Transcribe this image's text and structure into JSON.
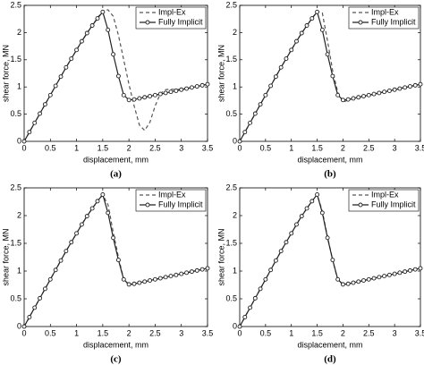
{
  "chart_data": [
    {
      "type": "line",
      "caption": "(a)",
      "xlabel": "displacement, mm",
      "ylabel": "shear force, MN",
      "xlim": [
        0,
        3.5
      ],
      "ylim": [
        0,
        2.5
      ],
      "xticks": [
        0,
        0.5,
        1,
        1.5,
        2,
        2.5,
        3,
        3.5
      ],
      "yticks": [
        0,
        0.5,
        1,
        1.5,
        2,
        2.5
      ],
      "legend": "upper right",
      "x": [
        0,
        0.1,
        0.2,
        0.3,
        0.4,
        0.5,
        0.6,
        0.7,
        0.8,
        0.9,
        1,
        1.1,
        1.2,
        1.3,
        1.4,
        1.5,
        1.6,
        1.7,
        1.8,
        1.9,
        2,
        2.1,
        2.2,
        2.3,
        2.4,
        2.5,
        2.6,
        2.7,
        2.8,
        2.9,
        3,
        3.1,
        3.2,
        3.3,
        3.4,
        3.5
      ],
      "series": [
        {
          "name": "Impl-Ex",
          "color": "#555555",
          "linestyle": "dashed",
          "values": [
            0,
            0.17,
            0.34,
            0.51,
            0.68,
            0.85,
            1.02,
            1.19,
            1.36,
            1.52,
            1.68,
            1.84,
            1.99,
            2.13,
            2.27,
            2.4,
            2.42,
            2.3,
            1.95,
            1.5,
            1.05,
            0.65,
            0.3,
            0.2,
            0.35,
            0.65,
            0.88,
            0.95,
            0.96,
            0.95,
            0.96,
            0.97,
            0.99,
            1.01,
            1.03,
            1.05
          ]
        },
        {
          "name": "Fully Implicit",
          "color": "#222222",
          "linestyle": "solid",
          "marker": "o",
          "values": [
            0,
            0.17,
            0.34,
            0.51,
            0.68,
            0.85,
            1.02,
            1.19,
            1.36,
            1.52,
            1.68,
            1.84,
            1.99,
            2.13,
            2.26,
            2.38,
            2.05,
            1.6,
            1.2,
            0.85,
            0.76,
            0.77,
            0.79,
            0.81,
            0.83,
            0.85,
            0.87,
            0.89,
            0.91,
            0.93,
            0.95,
            0.97,
            0.99,
            1.01,
            1.03,
            1.05
          ]
        }
      ]
    },
    {
      "type": "line",
      "caption": "(b)",
      "xlabel": "displacement, mm",
      "ylabel": "shear force, MN",
      "xlim": [
        0,
        3.5
      ],
      "ylim": [
        0,
        2.5
      ],
      "xticks": [
        0,
        0.5,
        1,
        1.5,
        2,
        2.5,
        3,
        3.5
      ],
      "yticks": [
        0,
        0.5,
        1,
        1.5,
        2,
        2.5
      ],
      "legend": "upper right",
      "x": [
        0,
        0.1,
        0.2,
        0.3,
        0.4,
        0.5,
        0.6,
        0.7,
        0.8,
        0.9,
        1,
        1.1,
        1.2,
        1.3,
        1.4,
        1.5,
        1.6,
        1.7,
        1.8,
        1.9,
        2,
        2.1,
        2.2,
        2.3,
        2.4,
        2.5,
        2.6,
        2.7,
        2.8,
        2.9,
        3,
        3.1,
        3.2,
        3.3,
        3.4,
        3.5
      ],
      "series": [
        {
          "name": "Impl-Ex",
          "color": "#555555",
          "linestyle": "dashed",
          "values": [
            0,
            0.17,
            0.34,
            0.51,
            0.68,
            0.85,
            1.02,
            1.19,
            1.36,
            1.52,
            1.68,
            1.84,
            1.99,
            2.13,
            2.26,
            2.39,
            2.36,
            1.85,
            1.3,
            0.9,
            0.72,
            0.76,
            0.79,
            0.81,
            0.83,
            0.85,
            0.87,
            0.89,
            0.91,
            0.93,
            0.95,
            0.97,
            0.99,
            1.01,
            1.03,
            1.05
          ]
        },
        {
          "name": "Fully Implicit",
          "color": "#222222",
          "linestyle": "solid",
          "marker": "o",
          "values": [
            0,
            0.17,
            0.34,
            0.51,
            0.68,
            0.85,
            1.02,
            1.19,
            1.36,
            1.52,
            1.68,
            1.84,
            1.99,
            2.13,
            2.26,
            2.38,
            2.05,
            1.6,
            1.2,
            0.85,
            0.76,
            0.77,
            0.79,
            0.81,
            0.83,
            0.85,
            0.87,
            0.89,
            0.91,
            0.93,
            0.95,
            0.97,
            0.99,
            1.01,
            1.03,
            1.05
          ]
        }
      ]
    },
    {
      "type": "line",
      "caption": "(c)",
      "xlabel": "displacement, mm",
      "ylabel": "shear force, MN",
      "xlim": [
        0,
        3.5
      ],
      "ylim": [
        0,
        2.5
      ],
      "xticks": [
        0,
        0.5,
        1,
        1.5,
        2,
        2.5,
        3,
        3.5
      ],
      "yticks": [
        0,
        0.5,
        1,
        1.5,
        2,
        2.5
      ],
      "legend": "upper right",
      "x": [
        0,
        0.1,
        0.2,
        0.3,
        0.4,
        0.5,
        0.6,
        0.7,
        0.8,
        0.9,
        1,
        1.1,
        1.2,
        1.3,
        1.4,
        1.5,
        1.6,
        1.7,
        1.8,
        1.9,
        2,
        2.1,
        2.2,
        2.3,
        2.4,
        2.5,
        2.6,
        2.7,
        2.8,
        2.9,
        3,
        3.1,
        3.2,
        3.3,
        3.4,
        3.5
      ],
      "series": [
        {
          "name": "Impl-Ex",
          "color": "#555555",
          "linestyle": "dashed",
          "values": [
            0,
            0.17,
            0.34,
            0.51,
            0.68,
            0.85,
            1.02,
            1.19,
            1.36,
            1.52,
            1.68,
            1.84,
            1.99,
            2.13,
            2.26,
            2.37,
            2.2,
            1.7,
            1.25,
            0.85,
            0.75,
            0.77,
            0.79,
            0.81,
            0.83,
            0.85,
            0.87,
            0.89,
            0.91,
            0.93,
            0.95,
            0.97,
            0.99,
            1.01,
            1.03,
            1.05
          ]
        },
        {
          "name": "Fully Implicit",
          "color": "#222222",
          "linestyle": "solid",
          "marker": "o",
          "values": [
            0,
            0.17,
            0.34,
            0.51,
            0.68,
            0.85,
            1.02,
            1.19,
            1.36,
            1.52,
            1.68,
            1.84,
            1.99,
            2.13,
            2.26,
            2.38,
            2.05,
            1.6,
            1.2,
            0.85,
            0.76,
            0.77,
            0.79,
            0.81,
            0.83,
            0.85,
            0.87,
            0.89,
            0.91,
            0.93,
            0.95,
            0.97,
            0.99,
            1.01,
            1.03,
            1.05
          ]
        }
      ]
    },
    {
      "type": "line",
      "caption": "(d)",
      "xlabel": "displacement, mm",
      "ylabel": "shear force, MN",
      "xlim": [
        0,
        3.5
      ],
      "ylim": [
        0,
        2.5
      ],
      "xticks": [
        0,
        0.5,
        1,
        1.5,
        2,
        2.5,
        3,
        3.5
      ],
      "yticks": [
        0,
        0.5,
        1,
        1.5,
        2,
        2.5
      ],
      "legend": "upper right",
      "x": [
        0,
        0.1,
        0.2,
        0.3,
        0.4,
        0.5,
        0.6,
        0.7,
        0.8,
        0.9,
        1,
        1.1,
        1.2,
        1.3,
        1.4,
        1.5,
        1.6,
        1.7,
        1.8,
        1.9,
        2,
        2.1,
        2.2,
        2.3,
        2.4,
        2.5,
        2.6,
        2.7,
        2.8,
        2.9,
        3,
        3.1,
        3.2,
        3.3,
        3.4,
        3.5
      ],
      "series": [
        {
          "name": "Impl-Ex",
          "color": "#555555",
          "linestyle": "dashed",
          "values": [
            0,
            0.17,
            0.34,
            0.51,
            0.68,
            0.85,
            1.02,
            1.19,
            1.36,
            1.52,
            1.68,
            1.84,
            1.99,
            2.13,
            2.26,
            2.38,
            2.08,
            1.62,
            1.2,
            0.84,
            0.76,
            0.77,
            0.79,
            0.81,
            0.83,
            0.85,
            0.87,
            0.89,
            0.91,
            0.93,
            0.95,
            0.97,
            0.99,
            1.01,
            1.03,
            1.05
          ]
        },
        {
          "name": "Fully Implicit",
          "color": "#222222",
          "linestyle": "solid",
          "marker": "o",
          "values": [
            0,
            0.17,
            0.34,
            0.51,
            0.68,
            0.85,
            1.02,
            1.19,
            1.36,
            1.52,
            1.68,
            1.84,
            1.99,
            2.13,
            2.26,
            2.38,
            2.05,
            1.6,
            1.2,
            0.85,
            0.76,
            0.77,
            0.79,
            0.81,
            0.83,
            0.85,
            0.87,
            0.89,
            0.91,
            0.93,
            0.95,
            0.97,
            0.99,
            1.01,
            1.03,
            1.05
          ]
        }
      ]
    }
  ]
}
